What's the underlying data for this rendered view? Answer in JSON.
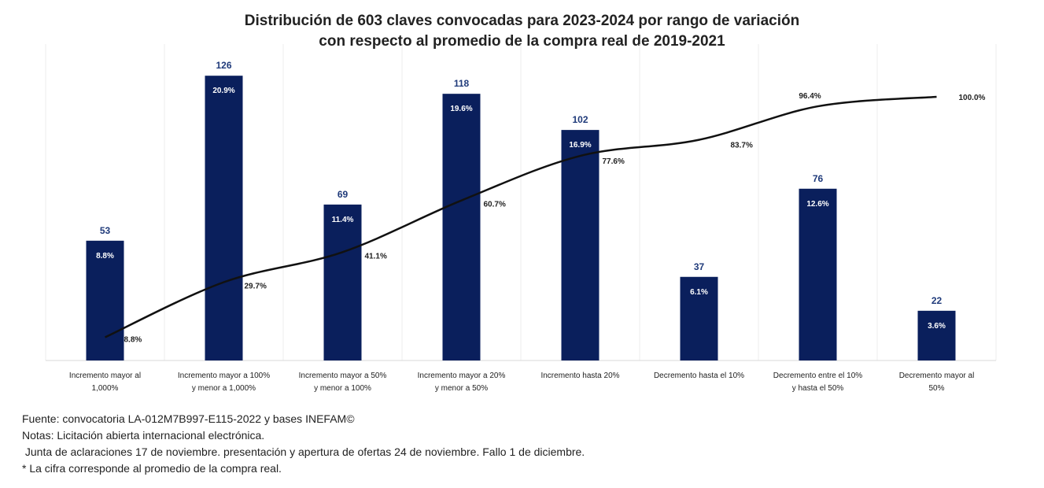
{
  "chart_data": {
    "type": "bar",
    "title_line1": "Distribución de 603 claves convocadas para 2023-2024 por rango de variación",
    "title_line2": "con respecto al promedio de la compra real de 2019-2021",
    "categories": [
      [
        "Incremento mayor al",
        "1,000%"
      ],
      [
        "Incremento mayor a 100%",
        "y menor a 1,000%"
      ],
      [
        "Incremento mayor a 50%",
        "y menor a 100%"
      ],
      [
        "Incremento mayor a 20%",
        "y menor a 50%"
      ],
      [
        "Incremento hasta 20%",
        ""
      ],
      [
        "Decremento hasta el 10%",
        ""
      ],
      [
        "Decremento entre el 10%",
        "y hasta el 50%"
      ],
      [
        "Decremento mayor al",
        "50%"
      ]
    ],
    "values": [
      53,
      126,
      69,
      118,
      102,
      37,
      76,
      22
    ],
    "value_labels": [
      "53",
      "126",
      "69",
      "118",
      "102",
      "37",
      "76",
      "22"
    ],
    "share_labels": [
      "8.8%",
      "20.9%",
      "11.4%",
      "19.6%",
      "16.9%",
      "6.1%",
      "12.6%",
      "3.6%"
    ],
    "cumulative": [
      8.8,
      29.7,
      41.1,
      60.7,
      77.6,
      83.7,
      96.4,
      100.0
    ],
    "cumulative_labels": [
      "8.8%",
      "29.7%",
      "41.1%",
      "60.7%",
      "77.6%",
      "83.7%",
      "96.4%",
      "100.0%"
    ],
    "ylim": [
      0,
      140
    ],
    "y2lim": [
      0,
      120
    ],
    "grid": "vertical category separators",
    "bar_color": "#0a1f5c",
    "line_color": "#111111",
    "value_label_color": "#1f3a7a"
  },
  "notes": {
    "source": "Fuente: convocatoria LA-012M7B997-E115-2022 y bases INEFAM©",
    "note1": "Notas: Licitación abierta internacional electrónica.",
    "note2": " Junta de aclaraciones 17 de noviembre. presentación y apertura de ofertas 24 de noviembre. Fallo 1 de diciembre.",
    "note3": "* La cifra corresponde al promedio de la compra real."
  }
}
